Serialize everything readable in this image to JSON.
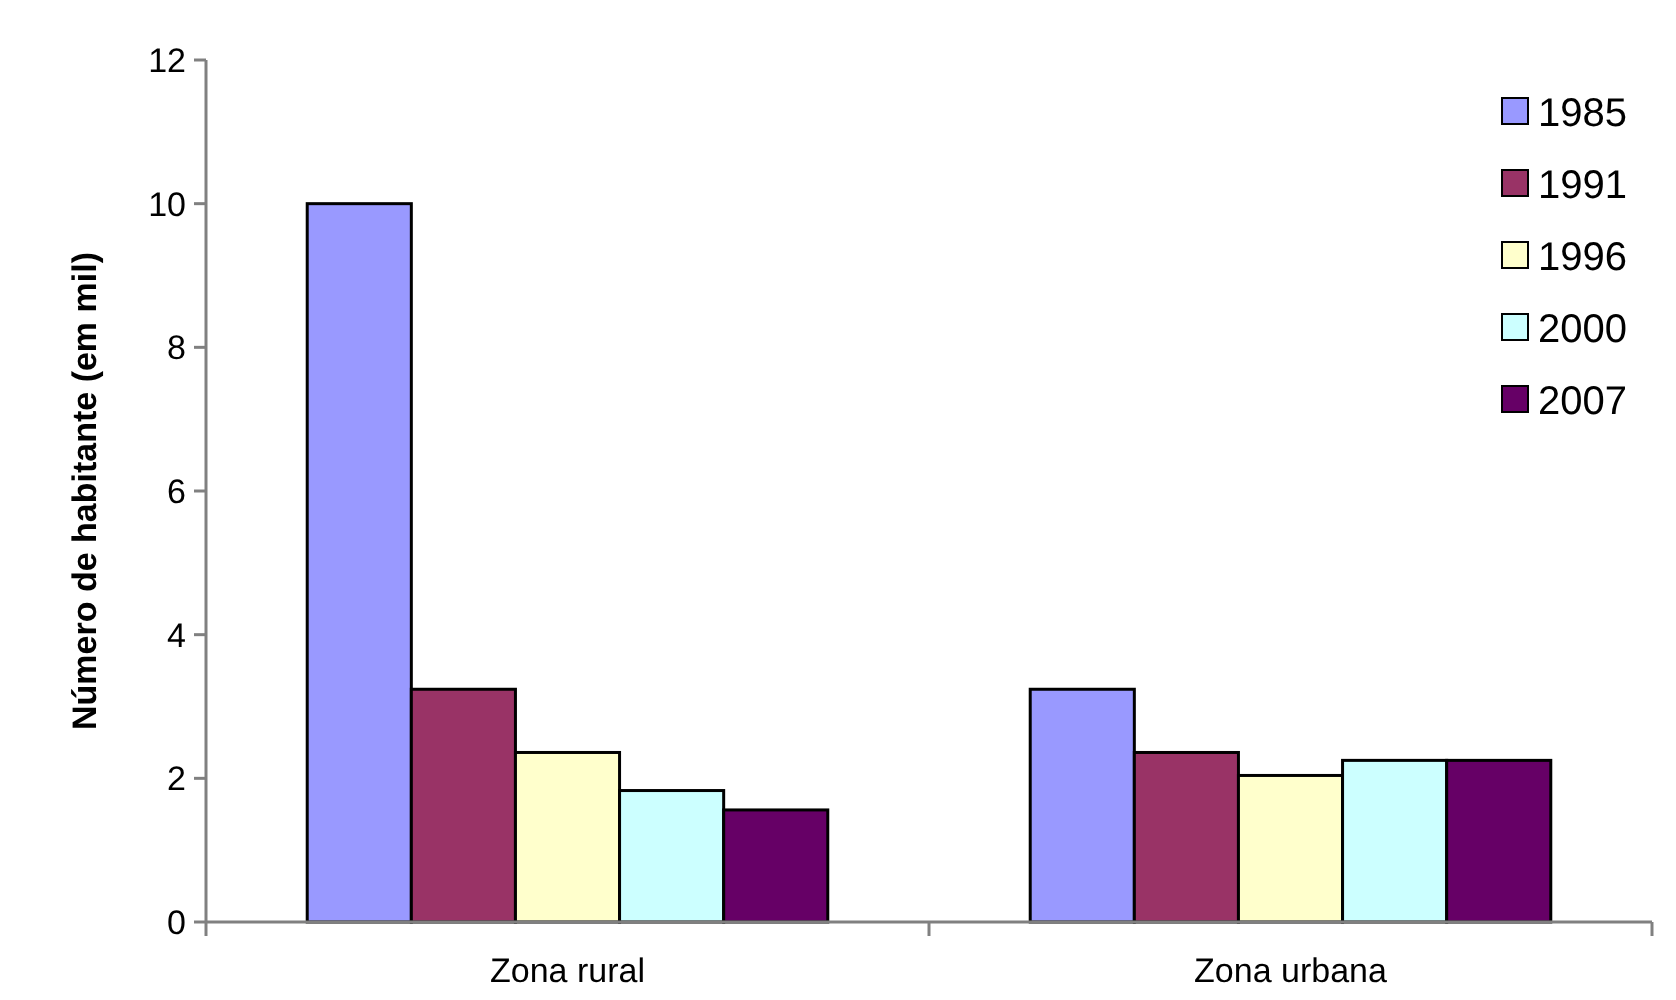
{
  "chart_data": {
    "type": "bar",
    "ylabel": "Número de habitante (em mil)",
    "categories": [
      "Zona rural",
      "Zona urbana"
    ],
    "series": [
      {
        "name": "1985",
        "color": "#9999ff",
        "values": [
          10,
          3.24
        ]
      },
      {
        "name": "1991",
        "color": "#993366",
        "values": [
          3.24,
          2.36
        ]
      },
      {
        "name": "1996",
        "color": "#ffffcc",
        "values": [
          2.36,
          2.04
        ]
      },
      {
        "name": "2000",
        "color": "#ccffff",
        "values": [
          1.83,
          2.25
        ]
      },
      {
        "name": "2007",
        "color": "#660066",
        "values": [
          1.56,
          2.25
        ]
      }
    ],
    "ylim": [
      0,
      12
    ],
    "yticks": [
      0,
      2,
      4,
      6,
      8,
      10,
      12
    ],
    "grid": false,
    "legend": "top right"
  }
}
